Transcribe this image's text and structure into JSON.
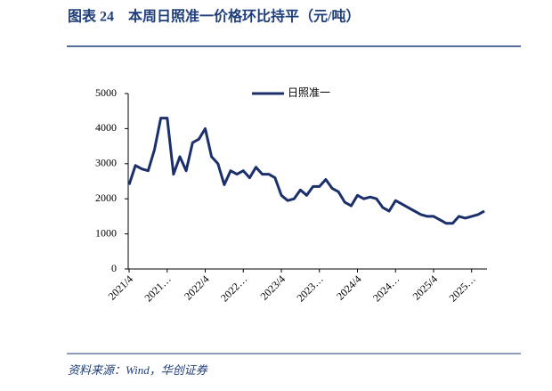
{
  "chart_data": {
    "type": "line",
    "title": "图表 24　本周日照准一价格环比持平（元/吨）",
    "source": "资料来源：Wind，华创证券",
    "categories": [
      "2021/4",
      null,
      null,
      null,
      null,
      null,
      "2021…",
      null,
      null,
      null,
      null,
      null,
      "2022/4",
      null,
      null,
      null,
      null,
      null,
      "2022…",
      null,
      null,
      null,
      null,
      null,
      "2023/4",
      null,
      null,
      null,
      null,
      null,
      "2023…",
      null,
      null,
      null,
      null,
      null,
      "2024/4",
      null,
      null,
      null,
      null,
      null,
      "2024…",
      null,
      null,
      null,
      null,
      null,
      "2025/4",
      null,
      null,
      null,
      null,
      null,
      "2025…",
      null,
      null
    ],
    "series": [
      {
        "name": "日照准一",
        "color": "#1b2f6b",
        "values": [
          2400,
          2950,
          2850,
          2800,
          3400,
          4300,
          4300,
          2700,
          3200,
          2800,
          3600,
          3700,
          4000,
          3200,
          3000,
          2400,
          2800,
          2700,
          2800,
          2600,
          2900,
          2700,
          2700,
          2600,
          2100,
          1950,
          2000,
          2250,
          2100,
          2350,
          2350,
          2550,
          2300,
          2200,
          1900,
          1800,
          2100,
          2000,
          2050,
          2000,
          1750,
          1650,
          1950,
          1850,
          1750,
          1650,
          1550,
          1500,
          1500,
          1400,
          1300,
          1300,
          1500,
          1450,
          1500,
          1550,
          1650
        ]
      }
    ],
    "ylim": [
      0,
      5000
    ],
    "yticks": [
      0,
      1000,
      2000,
      3000,
      4000,
      5000
    ],
    "legend": "top"
  }
}
